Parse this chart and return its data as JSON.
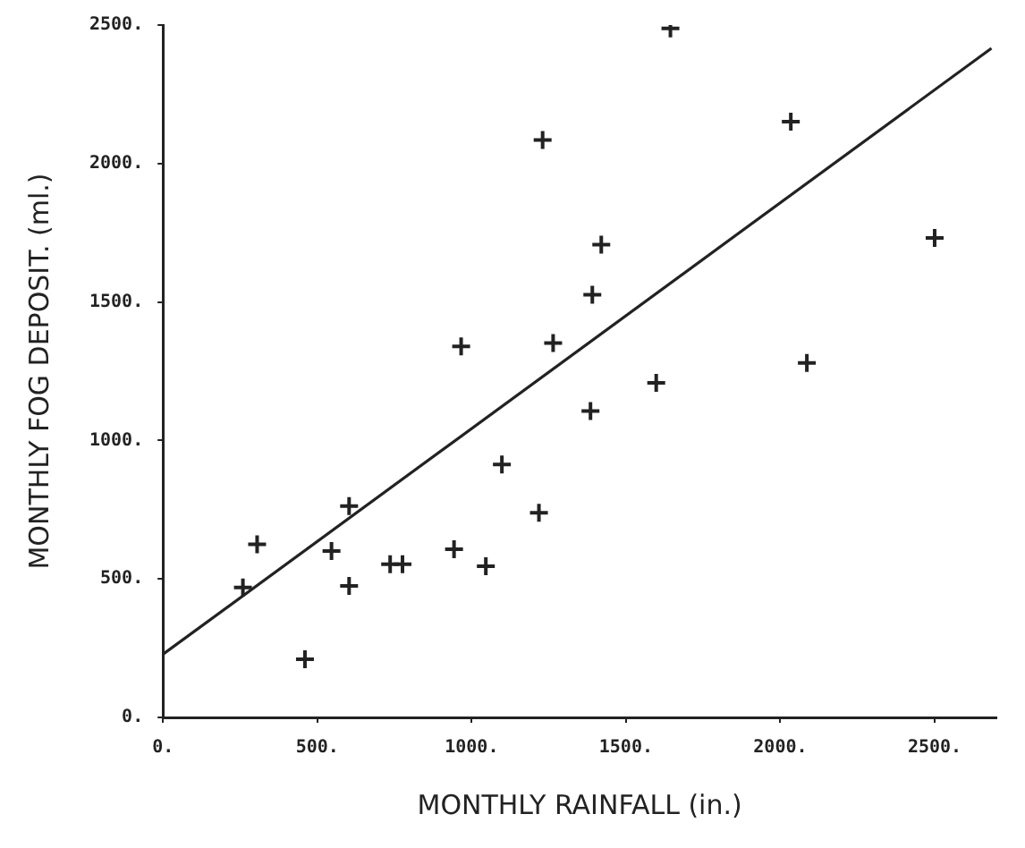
{
  "chart_data": {
    "type": "scatter",
    "xlabel": "MONTHLY RAINFALL (in.)",
    "ylabel": "MONTHLY FOG DEPOSIT. (ml.)",
    "xlim": [
      0,
      2700
    ],
    "ylim": [
      0,
      2500
    ],
    "xticks": [
      {
        "value": 0,
        "label": "0."
      },
      {
        "value": 500,
        "label": "500."
      },
      {
        "value": 1000,
        "label": "1000."
      },
      {
        "value": 1500,
        "label": "1500."
      },
      {
        "value": 2000,
        "label": "2000."
      },
      {
        "value": 2500,
        "label": "2500."
      }
    ],
    "yticks": [
      {
        "value": 0,
        "label": "0."
      },
      {
        "value": 500,
        "label": "500."
      },
      {
        "value": 1000,
        "label": "1000."
      },
      {
        "value": 1500,
        "label": "1500."
      },
      {
        "value": 2000,
        "label": "2000."
      },
      {
        "value": 2500,
        "label": "2500."
      }
    ],
    "grid": false,
    "legend": false,
    "marker": "cross",
    "series": [
      {
        "color": "#222222",
        "x": [
          259,
          305,
          460,
          546,
          603,
          603,
          736,
          776,
          943,
          966,
          1046,
          1098,
          1218,
          1230,
          1264,
          1385,
          1391,
          1420,
          1598,
          1644,
          2034,
          2086,
          2500
        ],
        "values": [
          469,
          625,
          210,
          601,
          763,
          475,
          553,
          553,
          607,
          1340,
          546,
          913,
          739,
          2085,
          1352,
          1106,
          1526,
          1707,
          1208,
          2488,
          2151,
          1280,
          1731
        ]
      },
      {
        "type": "line",
        "color": "#222222",
        "marker": "none",
        "x": [
          0,
          2684
        ],
        "values": [
          228,
          2416
        ]
      }
    ]
  }
}
